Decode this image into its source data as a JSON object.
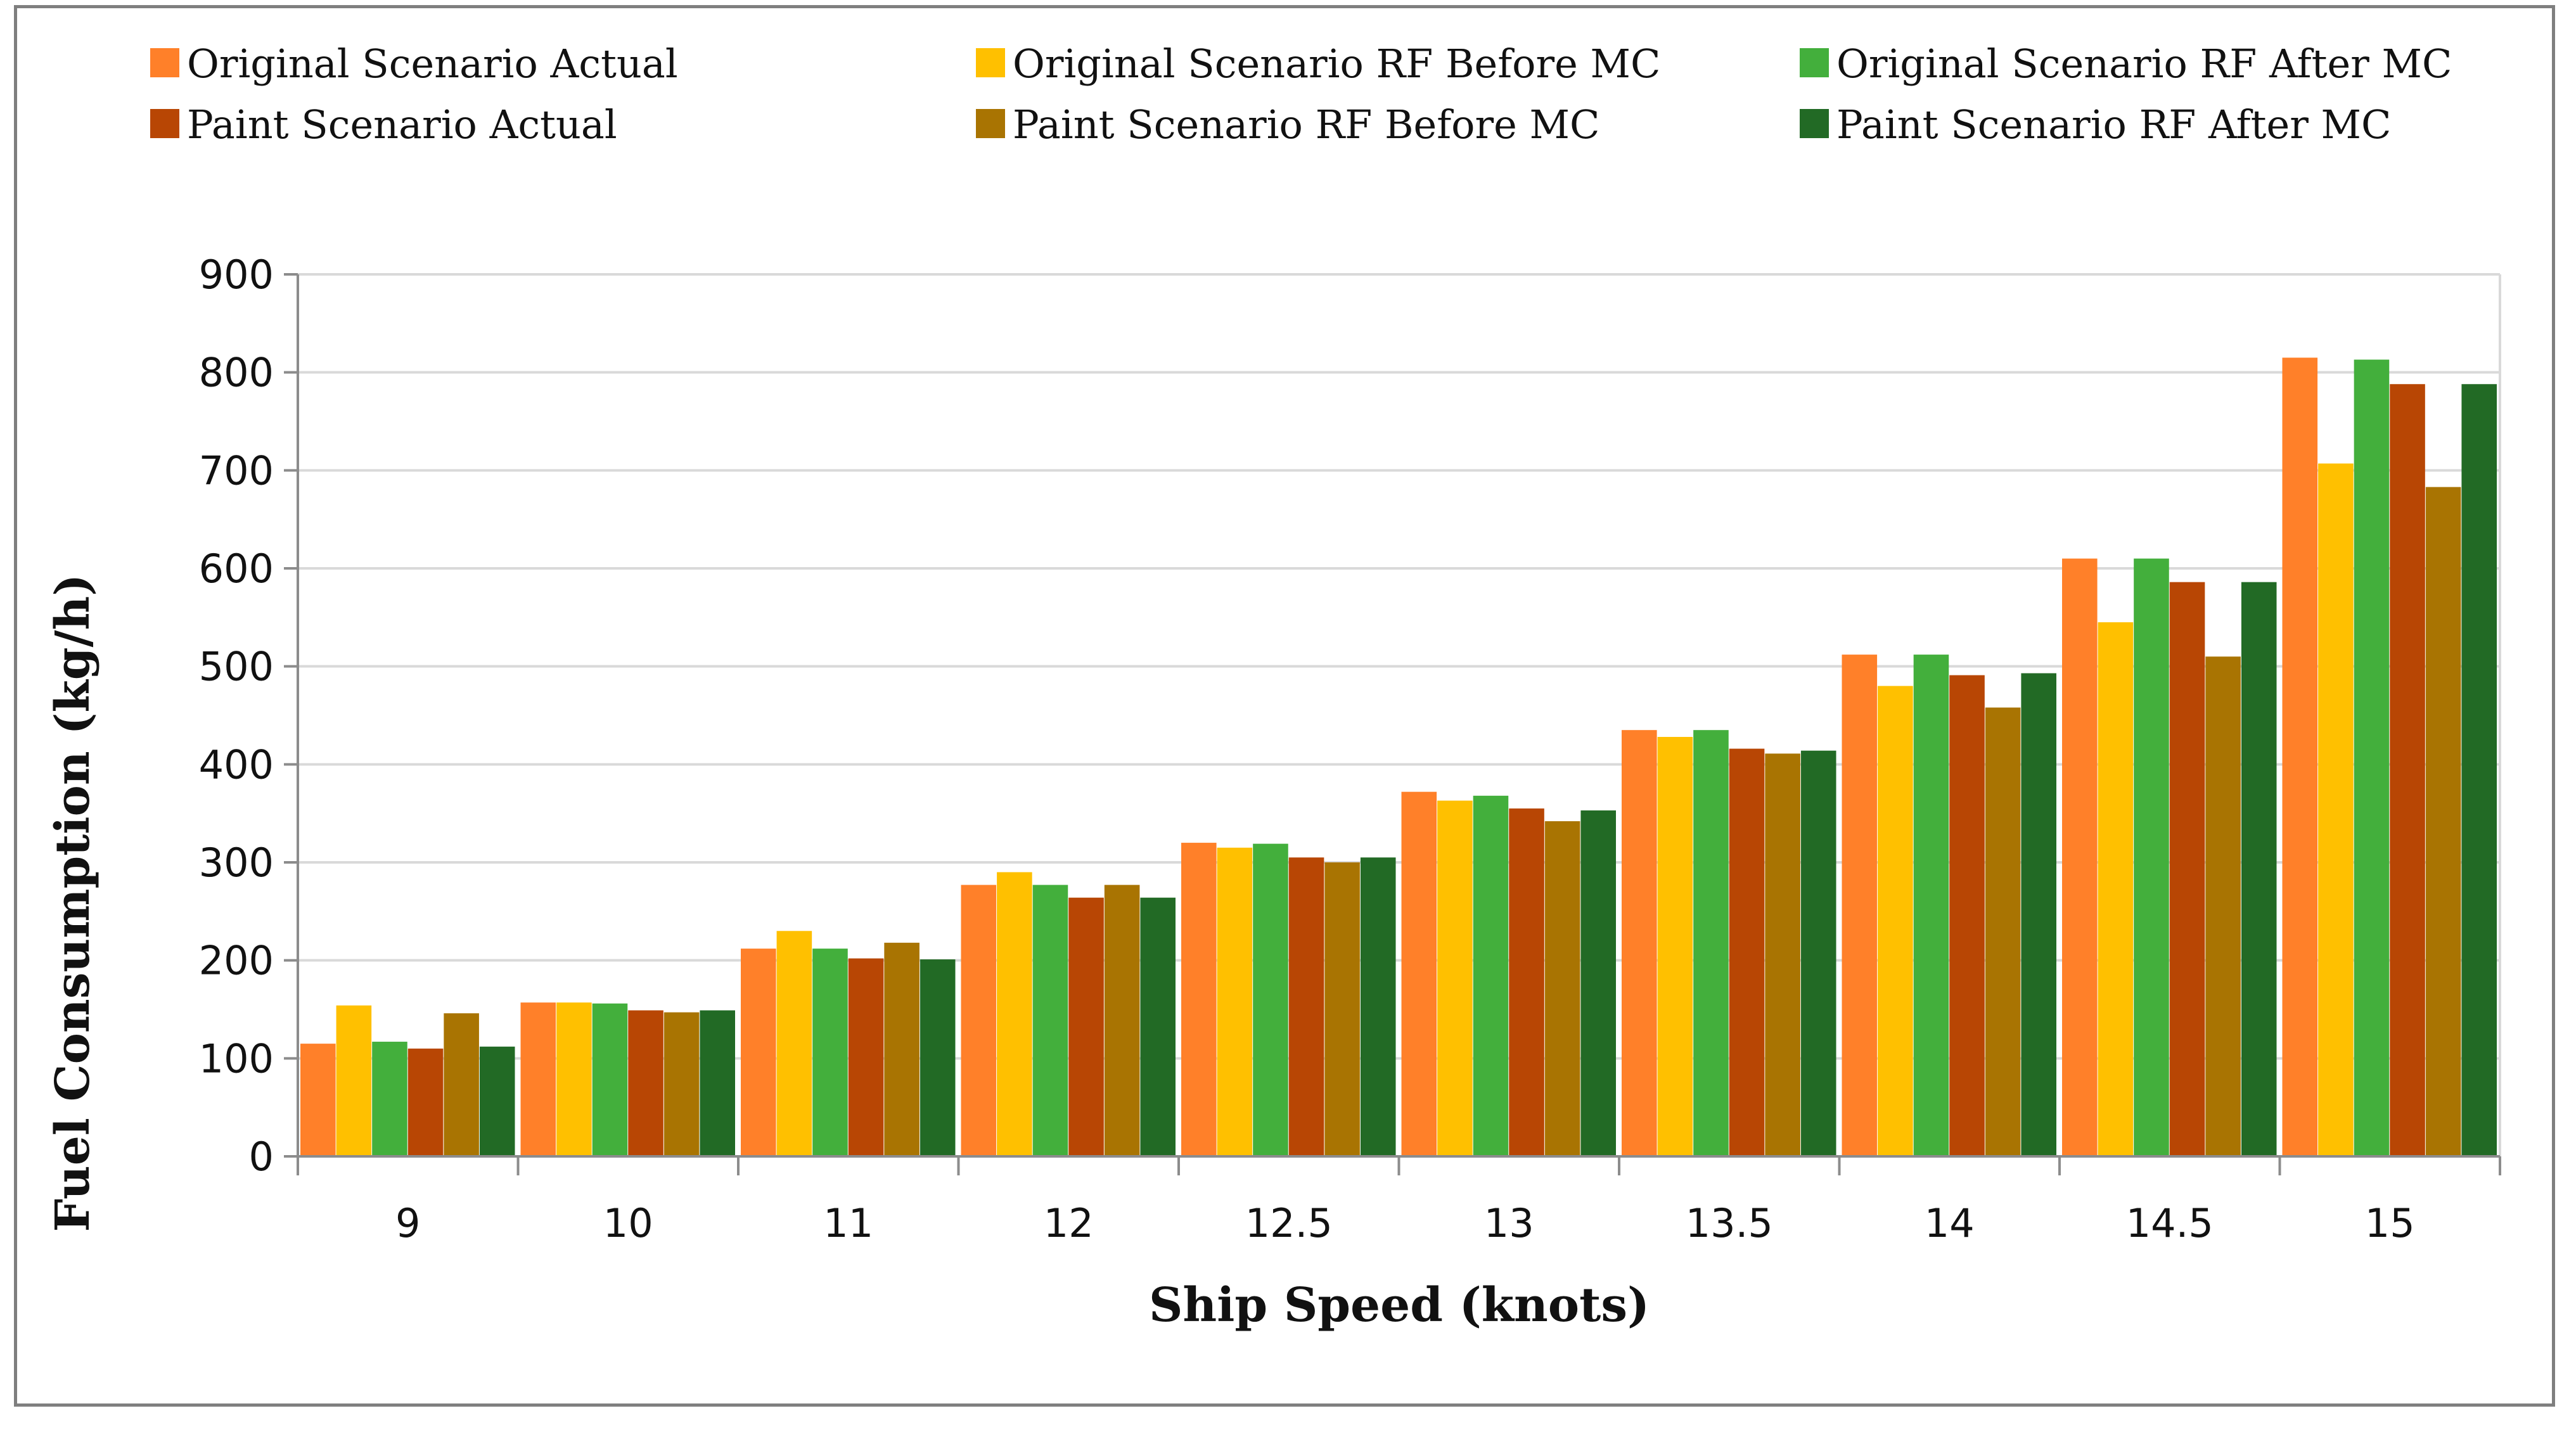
{
  "chart_data": {
    "type": "bar",
    "title": "",
    "xlabel": "Ship Speed (knots)",
    "ylabel": "Fuel Consumption (kg/h)",
    "ylim": [
      0,
      900
    ],
    "yticks": [
      "0",
      "100",
      "200",
      "300",
      "400",
      "500",
      "600",
      "700",
      "800",
      "900"
    ],
    "grid": true,
    "legend_position": "top",
    "categories": [
      "9",
      "10",
      "11",
      "12",
      "12.5",
      "13",
      "13.5",
      "14",
      "14.5",
      "15"
    ],
    "series": [
      {
        "name": "Original Scenario Actual",
        "color": "#FF8029",
        "values": [
          115,
          157,
          212,
          277,
          320,
          372,
          435,
          512,
          610,
          815
        ]
      },
      {
        "name": "Original Scenario RF Before MC",
        "color": "#FFC000",
        "values": [
          154,
          157,
          230,
          290,
          315,
          363,
          428,
          480,
          545,
          707
        ]
      },
      {
        "name": "Original Scenario RF After MC",
        "color": "#43AF3C",
        "values": [
          117,
          156,
          212,
          277,
          319,
          368,
          435,
          512,
          610,
          813
        ]
      },
      {
        "name": "Paint Scenario Actual",
        "color": "#B84604",
        "values": [
          110,
          149,
          202,
          264,
          305,
          355,
          416,
          491,
          586,
          788
        ]
      },
      {
        "name": "Paint Scenario RF Before MC",
        "color": "#A97402",
        "values": [
          146,
          147,
          218,
          277,
          300,
          342,
          411,
          458,
          510,
          683
        ]
      },
      {
        "name": "Paint Scenario RF After MC",
        "color": "#226A25",
        "values": [
          112,
          149,
          201,
          264,
          305,
          353,
          414,
          493,
          586,
          788
        ]
      }
    ]
  }
}
